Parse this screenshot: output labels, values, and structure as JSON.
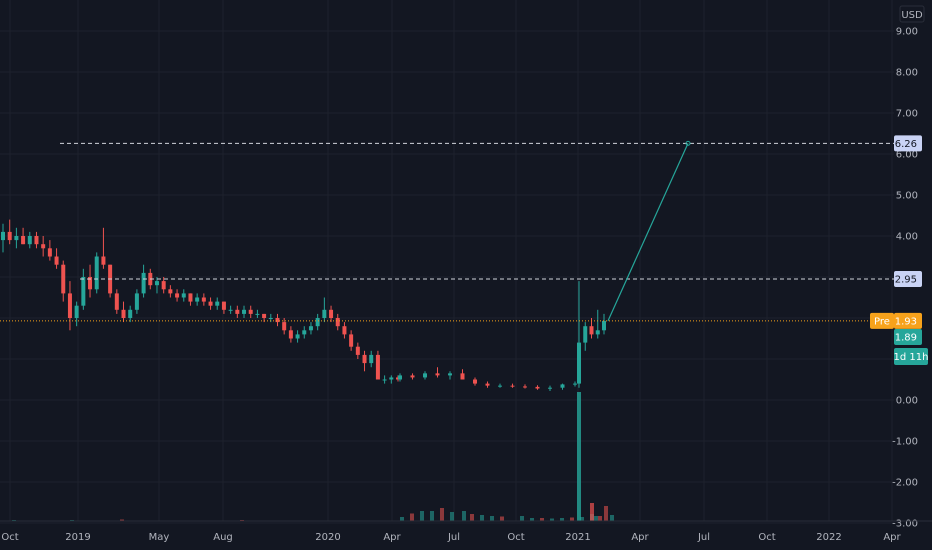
{
  "chart_data": {
    "type": "candlestick",
    "currency": "USD",
    "y_ticks": [
      "9.00",
      "8.00",
      "7.00",
      "6.00",
      "5.00",
      "4.00",
      "3.00",
      "2.00",
      "1.00",
      "0.00",
      "-1.00",
      "-2.00",
      "-3.00"
    ],
    "x_ticks": [
      "Oct",
      "2019",
      "May",
      "Aug",
      "2020",
      "Apr",
      "Jul",
      "Oct",
      "2021",
      "Apr",
      "Jul",
      "Oct",
      "2022",
      "Apr"
    ],
    "ylim": [
      -3,
      9.4
    ],
    "grid": true,
    "candles": [
      [
        3.9,
        4.3,
        3.6,
        4.1
      ],
      [
        4.1,
        4.4,
        3.8,
        3.9
      ],
      [
        3.9,
        4.2,
        3.7,
        4.0
      ],
      [
        4.0,
        4.2,
        3.8,
        3.8
      ],
      [
        3.8,
        4.1,
        3.7,
        4.0
      ],
      [
        4.0,
        4.1,
        3.7,
        3.8
      ],
      [
        3.8,
        4.0,
        3.5,
        3.7
      ],
      [
        3.7,
        3.9,
        3.4,
        3.5
      ],
      [
        3.5,
        3.7,
        3.2,
        3.3
      ],
      [
        3.3,
        3.4,
        2.4,
        2.6
      ],
      [
        2.6,
        2.9,
        1.7,
        2.0
      ],
      [
        2.0,
        2.4,
        1.8,
        2.3
      ],
      [
        2.3,
        3.2,
        2.2,
        3.0
      ],
      [
        3.0,
        3.3,
        2.5,
        2.7
      ],
      [
        2.7,
        3.6,
        2.6,
        3.5
      ],
      [
        3.5,
        4.2,
        3.2,
        3.3
      ],
      [
        3.3,
        3.3,
        2.5,
        2.6
      ],
      [
        2.6,
        2.7,
        2.1,
        2.2
      ],
      [
        2.2,
        2.4,
        1.9,
        2.0
      ],
      [
        2.0,
        2.3,
        1.9,
        2.2
      ],
      [
        2.2,
        2.7,
        2.1,
        2.6
      ],
      [
        2.6,
        3.3,
        2.5,
        3.1
      ],
      [
        3.1,
        3.2,
        2.7,
        2.8
      ],
      [
        2.8,
        3.0,
        2.6,
        2.9
      ],
      [
        2.9,
        3.0,
        2.6,
        2.7
      ],
      [
        2.7,
        2.8,
        2.5,
        2.6
      ],
      [
        2.6,
        2.7,
        2.4,
        2.5
      ],
      [
        2.5,
        2.7,
        2.4,
        2.6
      ],
      [
        2.6,
        2.6,
        2.3,
        2.4
      ],
      [
        2.4,
        2.6,
        2.3,
        2.5
      ],
      [
        2.5,
        2.6,
        2.3,
        2.4
      ],
      [
        2.4,
        2.5,
        2.2,
        2.3
      ],
      [
        2.3,
        2.5,
        2.2,
        2.4
      ],
      [
        2.4,
        2.4,
        2.1,
        2.2
      ],
      [
        2.2,
        2.3,
        2.1,
        2.2
      ],
      [
        2.2,
        2.3,
        2.0,
        2.1
      ],
      [
        2.1,
        2.3,
        2.0,
        2.2
      ],
      [
        2.2,
        2.3,
        2.0,
        2.1
      ],
      [
        2.1,
        2.2,
        2.0,
        2.1
      ],
      [
        2.1,
        2.1,
        1.9,
        2.0
      ],
      [
        2.0,
        2.1,
        1.9,
        2.0
      ],
      [
        2.0,
        2.1,
        1.8,
        1.9
      ],
      [
        1.9,
        2.0,
        1.6,
        1.7
      ],
      [
        1.7,
        1.8,
        1.4,
        1.5
      ],
      [
        1.5,
        1.7,
        1.4,
        1.6
      ],
      [
        1.6,
        1.8,
        1.5,
        1.7
      ],
      [
        1.7,
        1.9,
        1.6,
        1.8
      ],
      [
        1.8,
        2.1,
        1.7,
        2.0
      ],
      [
        2.0,
        2.5,
        1.9,
        2.2
      ],
      [
        2.2,
        2.3,
        1.9,
        2.0
      ],
      [
        2.0,
        2.1,
        1.7,
        1.8
      ],
      [
        1.8,
        1.9,
        1.5,
        1.6
      ],
      [
        1.6,
        1.7,
        1.2,
        1.3
      ],
      [
        1.3,
        1.4,
        1.0,
        1.1
      ],
      [
        1.1,
        1.2,
        0.7,
        0.9
      ],
      [
        0.9,
        1.2,
        0.8,
        1.1
      ],
      [
        1.1,
        1.2,
        0.5,
        0.5
      ],
      [
        0.5,
        0.6,
        0.4,
        0.5
      ],
      [
        0.5,
        0.6,
        0.4,
        0.55
      ],
      [
        0.55,
        0.6,
        0.45,
        0.5
      ],
      [
        0.5,
        0.65,
        0.45,
        0.6
      ],
      [
        0.6,
        0.65,
        0.5,
        0.55
      ],
      [
        0.55,
        0.7,
        0.5,
        0.65
      ],
      [
        0.65,
        0.8,
        0.55,
        0.6
      ],
      [
        0.6,
        0.7,
        0.5,
        0.65
      ],
      [
        0.65,
        0.75,
        0.5,
        0.5
      ],
      [
        0.5,
        0.55,
        0.35,
        0.4
      ],
      [
        0.4,
        0.45,
        0.3,
        0.35
      ],
      [
        0.35,
        0.4,
        0.3,
        0.35
      ],
      [
        0.35,
        0.4,
        0.3,
        0.33
      ],
      [
        0.33,
        0.38,
        0.28,
        0.32
      ],
      [
        0.32,
        0.36,
        0.25,
        0.28
      ],
      [
        0.28,
        0.35,
        0.22,
        0.3
      ],
      [
        0.3,
        0.4,
        0.25,
        0.38
      ],
      [
        0.38,
        0.45,
        0.33,
        0.4
      ],
      [
        0.4,
        2.9,
        0.3,
        1.4
      ],
      [
        1.4,
        1.9,
        1.2,
        1.8
      ],
      [
        1.8,
        2.0,
        1.5,
        1.6
      ],
      [
        1.6,
        2.2,
        1.5,
        1.7
      ],
      [
        1.7,
        2.1,
        1.6,
        1.93
      ]
    ],
    "volume_bars": [
      2,
      1,
      2,
      1,
      3,
      1,
      1,
      2,
      1,
      8,
      15,
      20,
      20,
      26,
      18,
      20,
      14,
      12,
      10,
      9,
      10,
      6,
      6,
      5,
      6,
      7,
      8,
      14,
      10,
      120,
      10,
      30,
      12
    ],
    "forecast_line": {
      "from": 1.93,
      "to": 6.26
    },
    "price_levels": [
      {
        "label": "6.26",
        "value": 6.26
      },
      {
        "label": "2.95",
        "value": 2.95
      }
    ],
    "current_price": {
      "prefix": "Pre",
      "label": "1.93",
      "value": 1.93
    },
    "last_close": {
      "label": "1.89",
      "value": 1.89
    },
    "countdown": "1d 11h",
    "colors": {
      "background": "#131722",
      "grid": "#1e222d",
      "up": "#26a69a",
      "down": "#ef5350",
      "level_line": "#d1d4dc",
      "level_tag": "#c9d3f5",
      "pre_tag": "#f7a21b",
      "close_tag": "#26a69a",
      "axis_text": "#b2b5be"
    }
  }
}
